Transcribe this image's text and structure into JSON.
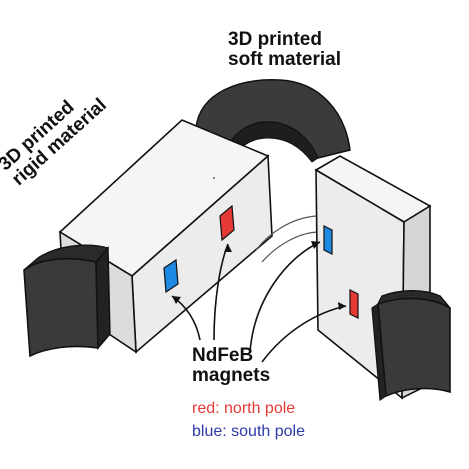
{
  "labels": {
    "soft_line1": "3D printed",
    "soft_line2": "soft material",
    "rigid_line1": "3D printed",
    "rigid_line2": "rigid material",
    "magnets_line1": "NdFeB",
    "magnets_line2": "magnets",
    "north_pole": "red: north pole",
    "south_pole": "blue: south pole"
  },
  "colors": {
    "north": "#e53935",
    "south": "#1e88e5",
    "legend_blue": "#2b3aa8",
    "soft_material": "#3a3a3a",
    "rigid_material": "#f2f2f2"
  }
}
